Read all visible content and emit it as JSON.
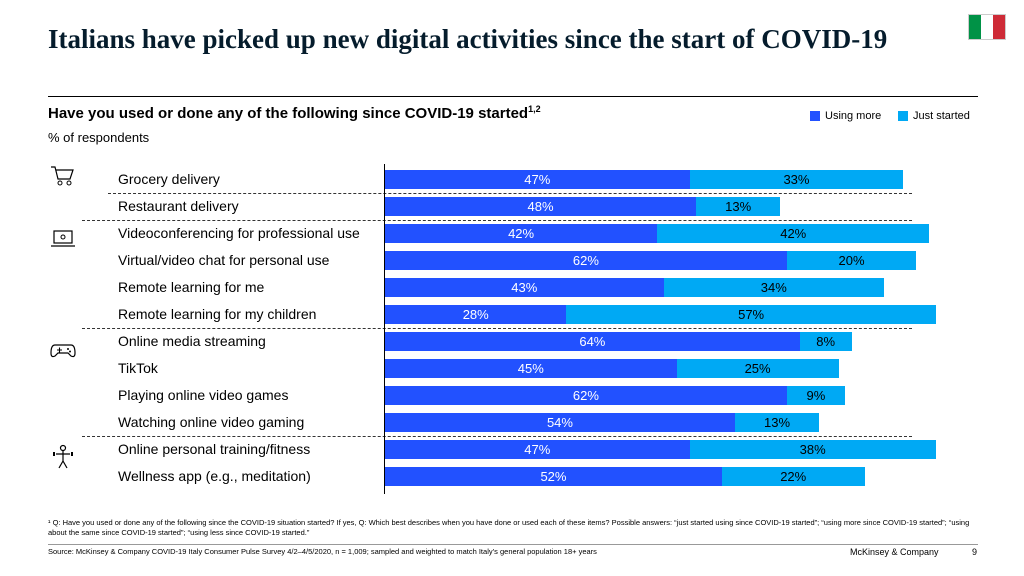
{
  "title": "Italians have picked up new digital activities since the start of COVID-19",
  "subtitle": "Have you used or done any of the following since COVID-19 started",
  "subtitle_sup": "1,2",
  "unit": "% of respondents",
  "flag_colors": [
    "#009246",
    "#ffffff",
    "#ce2b37"
  ],
  "colors": {
    "using_more": "#2251ff",
    "just_started": "#00a9f4"
  },
  "legend": {
    "using_more": "Using more",
    "just_started": "Just started"
  },
  "groups": [
    {
      "icon": "shopping-cart-icon",
      "rows": [
        0,
        1
      ]
    },
    {
      "icon": "laptop-icon",
      "rows": [
        2,
        3,
        4,
        5
      ]
    },
    {
      "icon": "gamepad-icon",
      "rows": [
        6,
        7,
        8,
        9
      ]
    },
    {
      "icon": "fitness-icon",
      "rows": [
        10,
        11
      ]
    }
  ],
  "chart_data": {
    "type": "bar",
    "orientation": "horizontal",
    "stacked": true,
    "categories": [
      "Grocery delivery",
      "Restaurant delivery",
      "Videoconferencing for professional use",
      "Virtual/video chat for personal use",
      "Remote learning for me",
      "Remote learning for my children",
      "Online media streaming",
      "TikTok",
      "Playing online video games",
      "Watching online video gaming",
      "Online personal training/fitness",
      "Wellness app (e.g., meditation)"
    ],
    "series": [
      {
        "name": "Using more",
        "values": [
          47,
          48,
          42,
          62,
          43,
          28,
          64,
          45,
          62,
          54,
          47,
          52
        ]
      },
      {
        "name": "Just started",
        "values": [
          33,
          13,
          42,
          20,
          34,
          57,
          8,
          25,
          9,
          13,
          38,
          22
        ]
      }
    ],
    "value_suffix": "%",
    "xlim": [
      0,
      85
    ]
  },
  "footnote": "¹ Q: Have you used or done any of the following since the COVID-19 situation started? If yes, Q: Which best describes when you have done or used each of these items? Possible answers: “just started using since COVID-19 started”; “using more since COVID-19 started”; “using about the same since COVID-19 started”; “using less since COVID-19 started.”",
  "source": "Source: McKinsey & Company COVID-19 Italy Consumer Pulse Survey 4/2–4/5/2020, n = 1,009; sampled and weighted to match Italy’s general population 18+ years",
  "brand": "McKinsey & Company",
  "page_number": "9"
}
